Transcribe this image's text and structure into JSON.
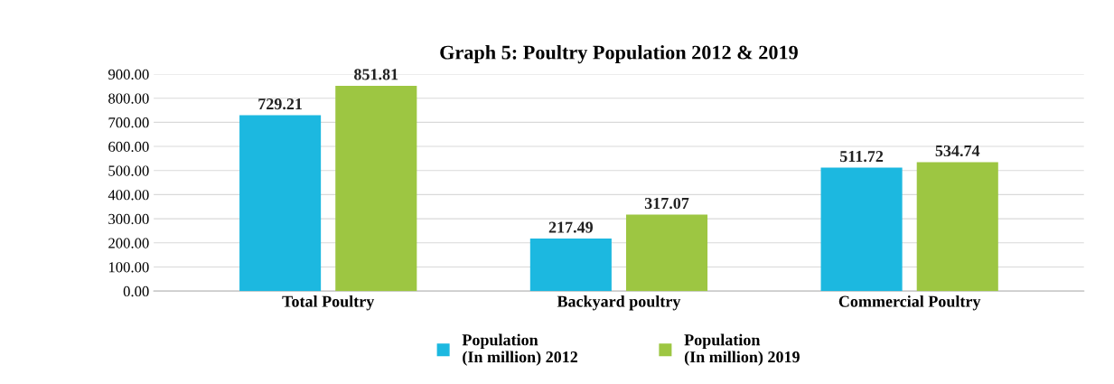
{
  "chart_data": {
    "type": "bar",
    "title": "Graph 5: Poultry Population 2012 & 2019",
    "categories": [
      "Total Poultry",
      "Backyard poultry",
      "Commercial Poultry"
    ],
    "series": [
      {
        "name": "Population\n(In million) 2012",
        "color": "#1cb8e0",
        "values": [
          729.21,
          217.49,
          511.72
        ]
      },
      {
        "name": "Population\n(In million) 2019",
        "color": "#9dc642",
        "values": [
          851.81,
          317.07,
          534.74
        ]
      }
    ],
    "ylim": [
      0,
      900
    ],
    "yticks": [
      {
        "value": 0,
        "label": "0.00"
      },
      {
        "value": 100,
        "label": "100.00"
      },
      {
        "value": 200,
        "label": "200.00"
      },
      {
        "value": 300,
        "label": "300.00"
      },
      {
        "value": 400,
        "label": "400.00"
      },
      {
        "value": 500,
        "label": "500.00"
      },
      {
        "value": 600,
        "label": "600.00"
      },
      {
        "value": 700,
        "label": "700.00"
      },
      {
        "value": 800,
        "label": "800.00"
      },
      {
        "value": 900,
        "label": "900.00"
      }
    ],
    "grid": "y",
    "legend": "bottom",
    "data_labels": true
  }
}
